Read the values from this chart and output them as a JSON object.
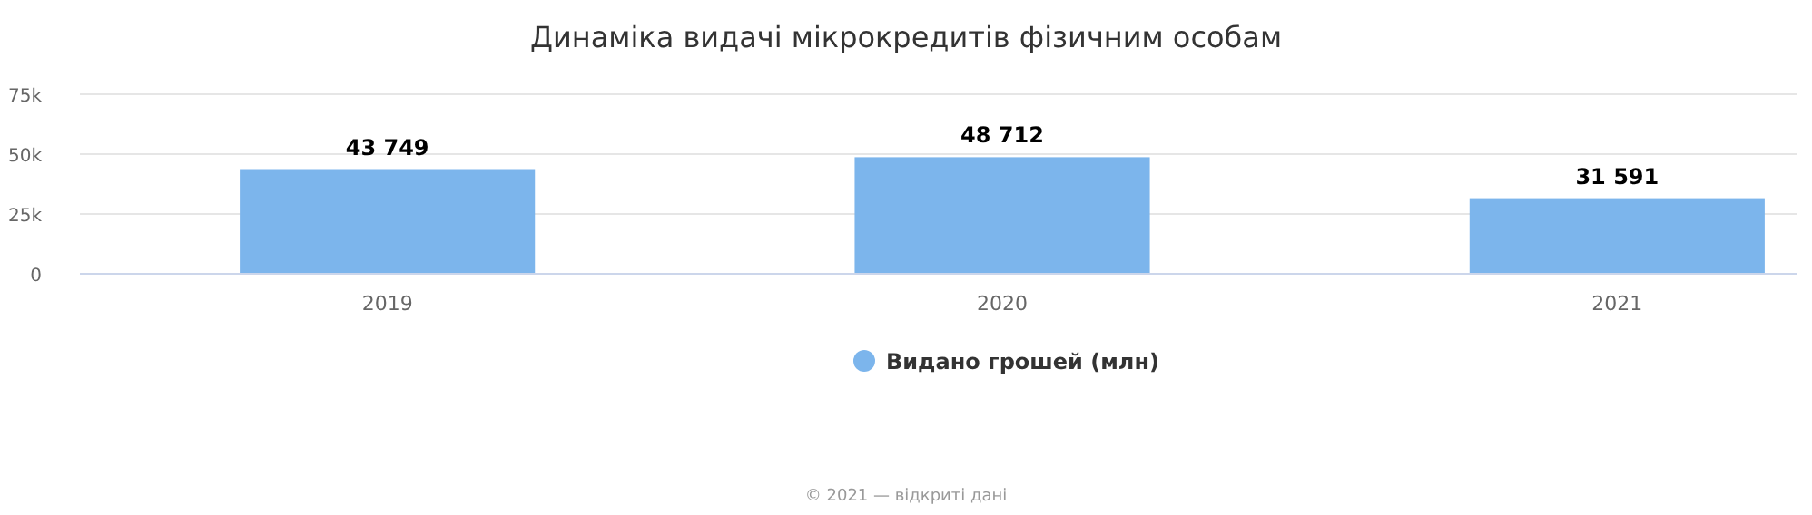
{
  "chart_data": {
    "type": "bar",
    "title": "Динаміка видачі мікрокредитів фізичним особам",
    "categories": [
      "2019",
      "2020",
      "2021"
    ],
    "series": [
      {
        "name": "Видано грошей (млн)",
        "color": "#7cb5ec",
        "values": [
          43749,
          48712,
          31591
        ],
        "value_labels": [
          "43 749",
          "48 712",
          "31 591"
        ]
      }
    ],
    "ylim": [
      0,
      75000
    ],
    "yticks": [
      0,
      {
        "value": 25000,
        "label": "25k"
      },
      {
        "value": 50000,
        "label": "50k"
      },
      {
        "value": 75000,
        "label": "75k"
      }
    ],
    "grid": "y",
    "legend": "bottom",
    "annotations": [
      "© 2021 — відкриті дані"
    ]
  }
}
